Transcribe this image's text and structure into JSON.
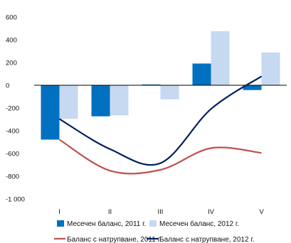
{
  "chart_data": {
    "type": "bar",
    "categories": [
      "I",
      "II",
      "III",
      "IV",
      "V"
    ],
    "ylim": [
      -1000,
      600
    ],
    "yticks": [
      600,
      400,
      200,
      0,
      -200,
      -400,
      -600,
      -800,
      -1000
    ],
    "ytick_labels": [
      "600",
      "400",
      "200",
      "0",
      "-200",
      "-400",
      "-600",
      "-800",
      "-1 000"
    ],
    "grid": false,
    "legend_position": "bottom",
    "bar_series": [
      {
        "name": "Месечен баланс, 2011 г.",
        "color": "#0070C0",
        "values": [
          -478,
          -273,
          7,
          191,
          -42
        ]
      },
      {
        "name": "Месечен баланс, 2012 г.",
        "color": "#C6D9F1",
        "values": [
          -296,
          -265,
          -124,
          476,
          288
        ]
      }
    ],
    "line_series": [
      {
        "name": "Баланс с натрупване, 2011 г.",
        "color": "#C0504D",
        "values": [
          -478,
          -751,
          -744,
          -553,
          -595
        ]
      },
      {
        "name": "Баланс с натрупване, 2012 г.",
        "color": "#002060",
        "values": [
          -296,
          -561,
          -685,
          -209,
          79
        ]
      }
    ]
  }
}
